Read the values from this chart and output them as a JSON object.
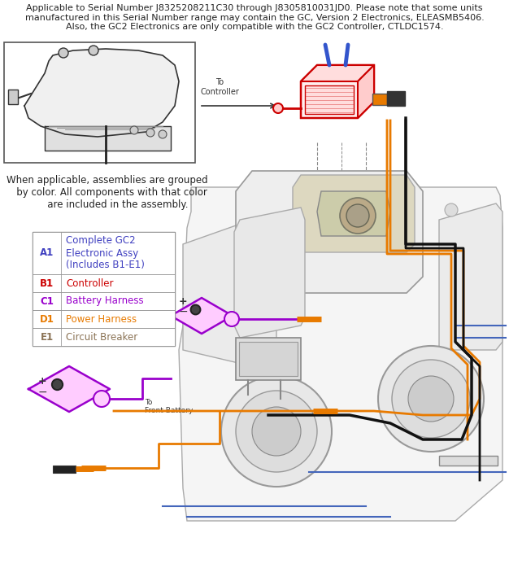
{
  "title_text": "Applicable to Serial Number J8325208211C30 through J8305810031JD0. Please note that some units\nmanufactured in this Serial Number range may contain the GC, Version 2 Electronics, ELEASMB5406.\nAlso, the GC2 Electronics are only compatible with the GC2 Controller, CTLDC1574.",
  "note_text": "When applicable, assemblies are grouped\n   by color. All components with that color\n       are included in the assembly.",
  "table_rows": [
    {
      "code": "A1",
      "label": "Complete GC2\nElectronic Assy\n(Includes B1-E1)",
      "code_color": "#4040c0",
      "label_color": "#4040c0",
      "tall": true
    },
    {
      "code": "B1",
      "label": "Controller",
      "code_color": "#cc0000",
      "label_color": "#cc0000",
      "tall": false
    },
    {
      "code": "C1",
      "label": "Battery Harness",
      "code_color": "#9900cc",
      "label_color": "#9900cc",
      "tall": false
    },
    {
      "code": "D1",
      "label": "Power Harness",
      "code_color": "#e87a00",
      "label_color": "#e87a00",
      "tall": false
    },
    {
      "code": "E1",
      "label": "Circuit Breaker",
      "code_color": "#8b7355",
      "label_color": "#8b7355",
      "tall": false
    }
  ],
  "fig_width": 6.26,
  "fig_height": 6.93,
  "dpi": 100,
  "bg_color": "#ffffff",
  "colors": {
    "red": "#cc0000",
    "blue": "#2244aa",
    "purple": "#9900cc",
    "orange": "#e87a00",
    "black": "#111111",
    "gray": "#888888",
    "ltgray": "#cccccc",
    "darkgray": "#444444",
    "tan": "#8b7355"
  }
}
